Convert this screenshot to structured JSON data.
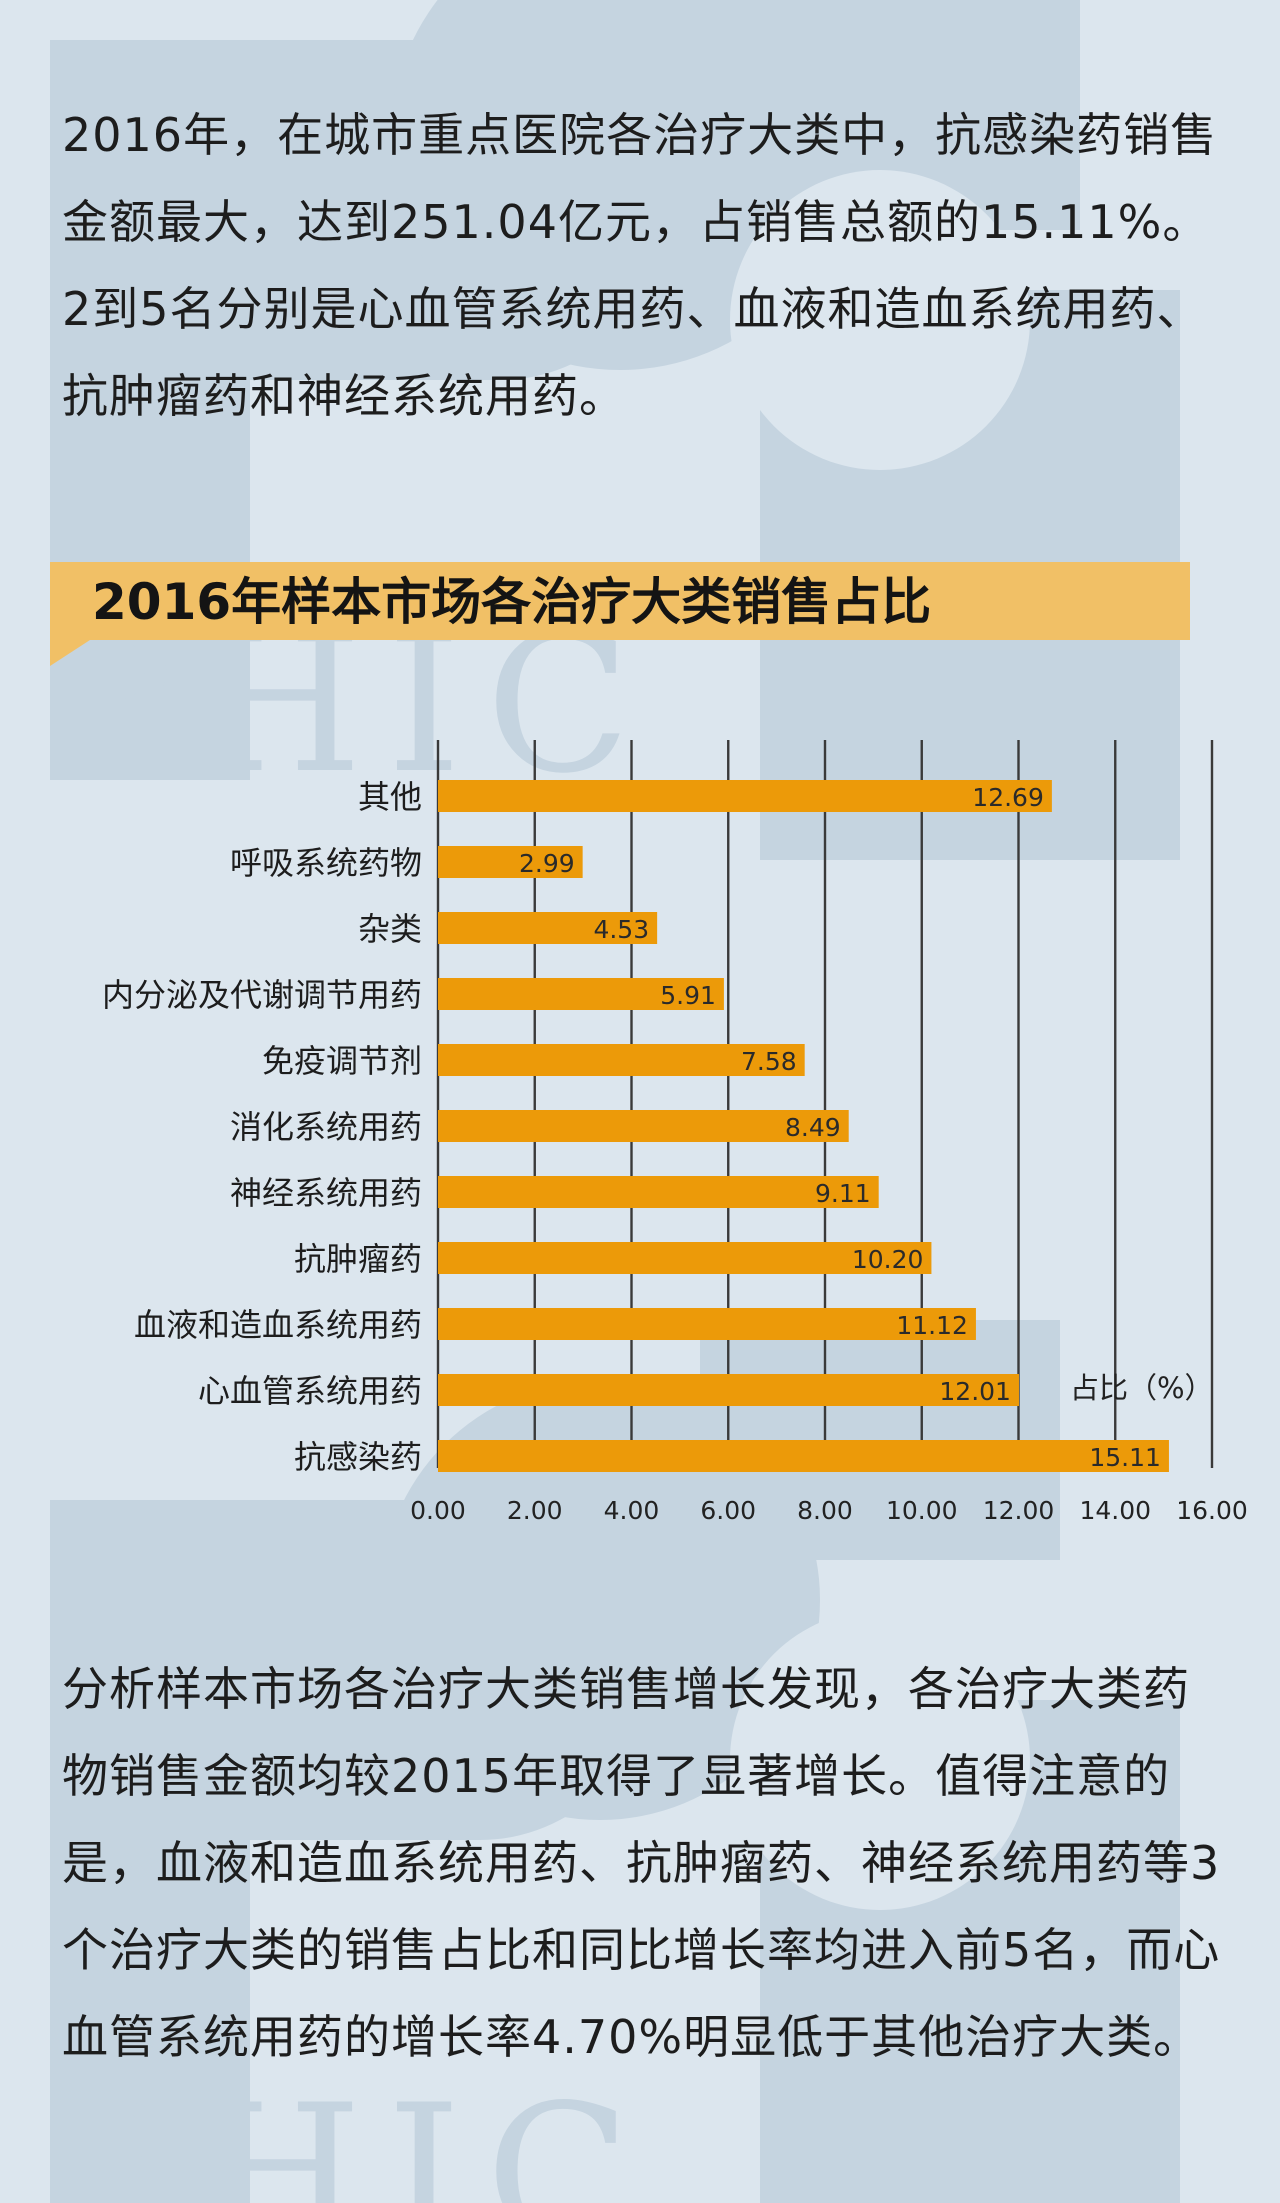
{
  "intro_text": "2016年，在城市重点医院各治疗大类中，抗感染药销售金额最大，达到251.04亿元，占销售总额的15.11%。2到5名分别是心血管系统用药、血液和造血系统用药、抗肿瘤药和神经系统用药。",
  "chart_title": "2016年样本市场各治疗大类销售占比",
  "chart_data": {
    "type": "bar",
    "orientation": "horizontal",
    "title": "2016年样本市场各治疗大类销售占比",
    "xlabel": "占比（%）",
    "ylabel": "",
    "categories": [
      "其他",
      "呼吸系统药物",
      "杂类",
      "内分泌及代谢调节用药",
      "免疫调节剂",
      "消化系统用药",
      "神经系统用药",
      "抗肿瘤药",
      "血液和造血系统用药",
      "心血管系统用药",
      "抗感染药"
    ],
    "values": [
      12.69,
      2.99,
      4.53,
      5.91,
      7.58,
      8.49,
      9.11,
      10.2,
      11.12,
      12.01,
      15.11
    ],
    "value_labels": [
      "12.69",
      "2.99",
      "4.53",
      "5.91",
      "7.58",
      "8.49",
      "9.11",
      "10.20",
      "11.12",
      "12.01",
      "15.11"
    ],
    "xlim": [
      0,
      16
    ],
    "x_ticks": [
      "0.00",
      "2.00",
      "4.00",
      "6.00",
      "8.00",
      "10.00",
      "12.00",
      "14.00",
      "16.00"
    ],
    "grid": "vertical",
    "bar_color": "#ec9a09",
    "banner_color": "#f1c066"
  },
  "analysis_text": "分析样本市场各治疗大类销售增长发现，各治疗大类药物销售金额均较2015年取得了显著增长。值得注意的是，血液和造血系统用药、抗肿瘤药、神经系统用药等3个治疗大类的销售占比和同比增长率均进入前5名，而心血管系统用药的增长率4.70%明显低于其他治疗大类。",
  "watermark_text": "PHIC"
}
